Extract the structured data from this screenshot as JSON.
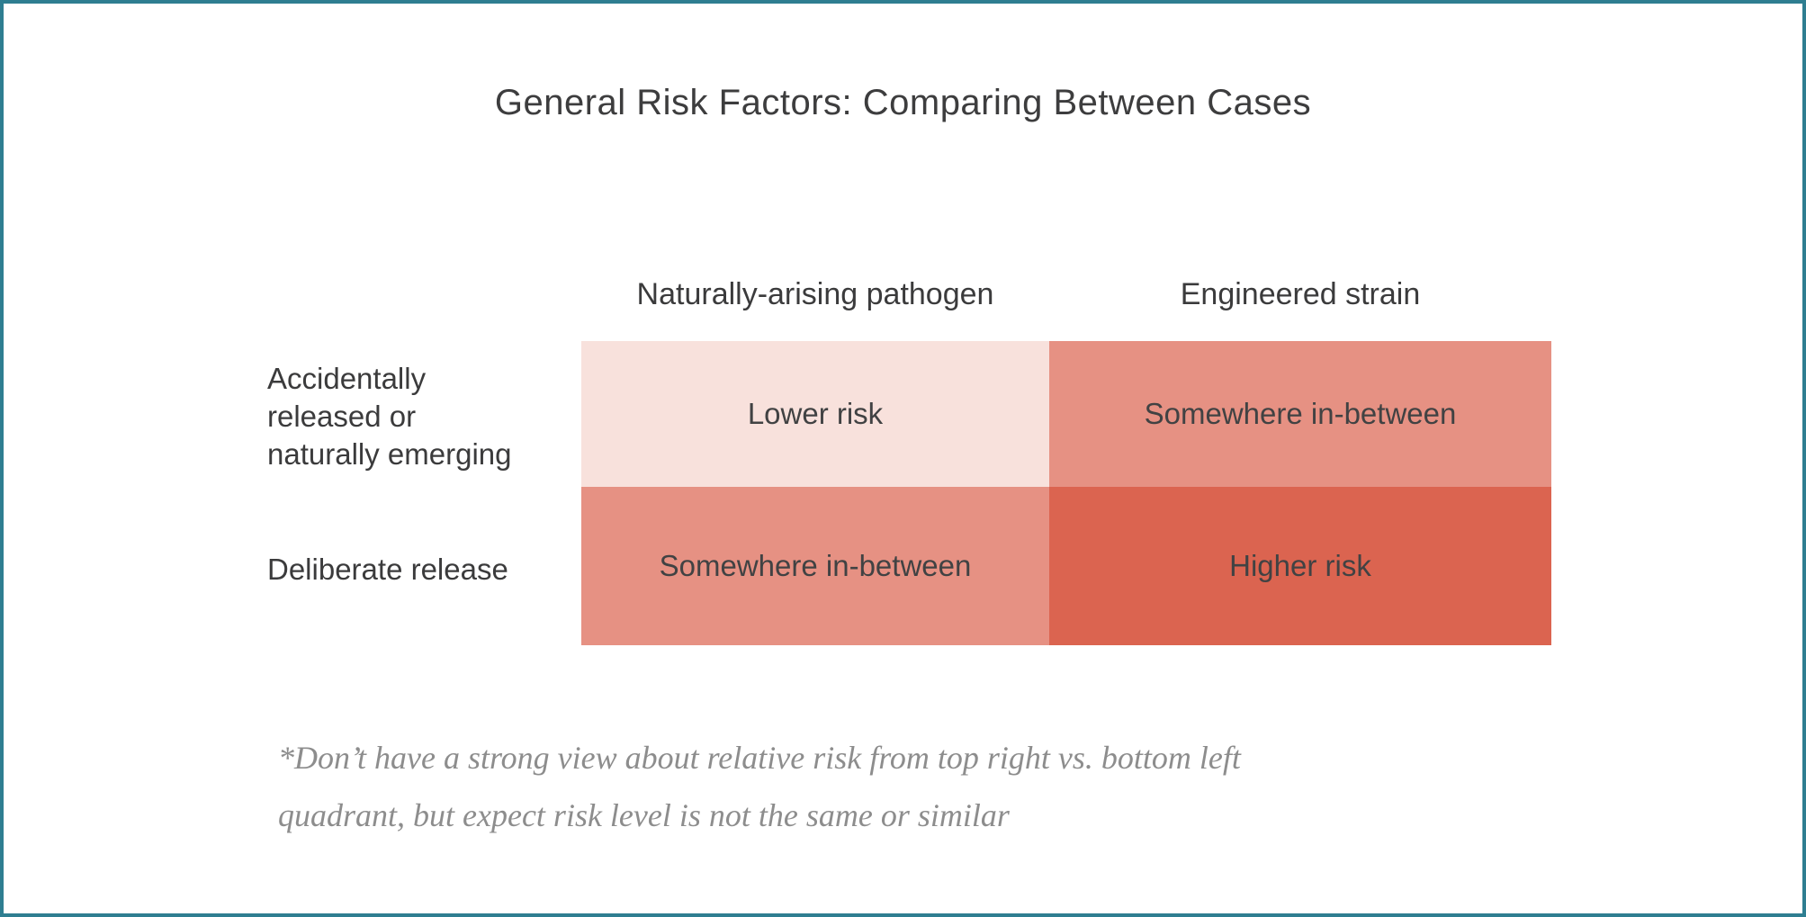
{
  "slide": {
    "title": "General Risk Factors: Comparing Between Cases"
  },
  "matrix": {
    "column_headers": [
      "Naturally-arising pathogen",
      "Engineered strain"
    ],
    "row_headers": [
      "Accidentally\nreleased or\nnaturally emerging",
      "Deliberate release"
    ],
    "cells": [
      {
        "label": "Lower risk",
        "color": "#f8e1dc"
      },
      {
        "label": "Somewhere in-between",
        "color": "#e69183"
      },
      {
        "label": "Somewhere in-between",
        "color": "#e69183"
      },
      {
        "label": "Higher risk",
        "color": "#db6450"
      }
    ]
  },
  "footnote": {
    "text": "*Don’t have a strong view about relative risk from top right vs. bottom left\nquadrant, but expect risk level is not the same or similar"
  },
  "colors": {
    "page_border": "#2e7e91"
  }
}
